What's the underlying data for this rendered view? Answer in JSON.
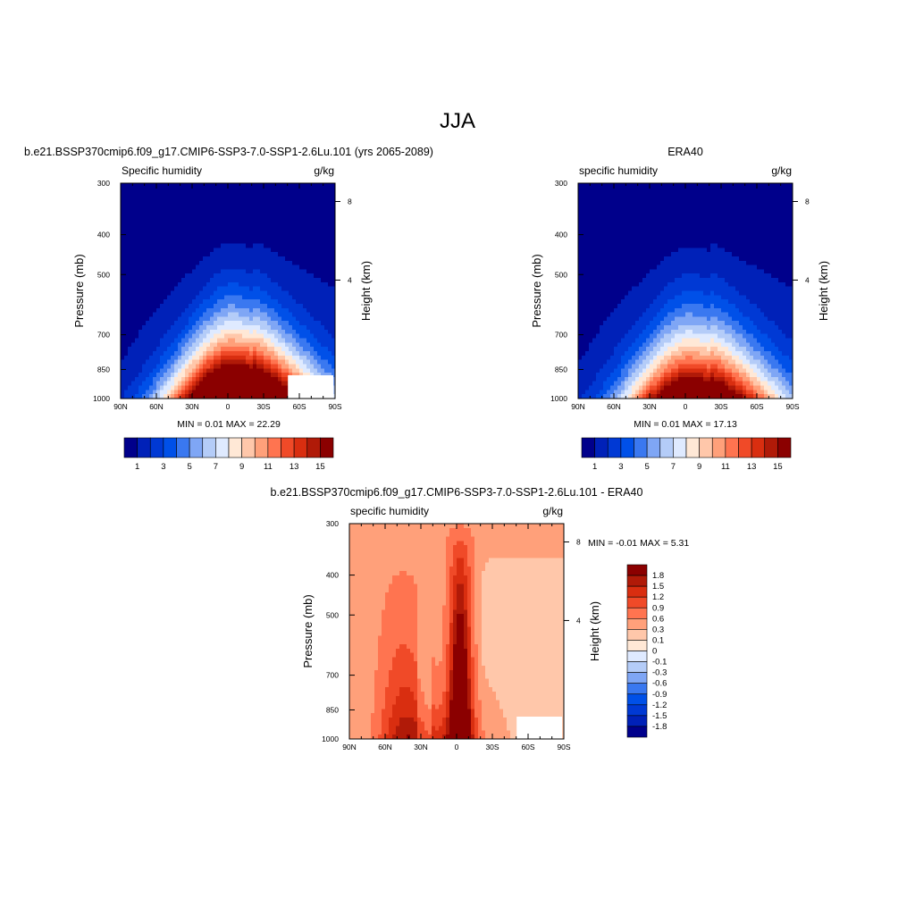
{
  "figure": {
    "title": "JJA"
  },
  "chart_data": [
    {
      "type": "heatmap",
      "title": "b.e21.BSSP370cmip6.f09_g17.CMIP6-SSP3-7.0-SSP1-2.6Lu.101 (yrs 2065-2089)",
      "left_label": "Specific humidity",
      "units": "g/kg",
      "ylabel": "Pressure (mb)",
      "y2label": "Height (km)",
      "x_ticks": [
        "90N",
        "60N",
        "30N",
        "0",
        "30S",
        "60S",
        "90S"
      ],
      "y_ticks": [
        "300",
        "400",
        "500",
        "700",
        "850",
        "1000"
      ],
      "y2_ticks": [
        "8",
        "4"
      ],
      "stats": "MIN =   0.01  MAX =  22.29",
      "colorbar_labels": [
        "1",
        "3",
        "5",
        "7",
        "9",
        "11",
        "13",
        "15"
      ],
      "colorbar_colors": [
        "#00008b",
        "#0021b8",
        "#0039d4",
        "#0050e8",
        "#3a78f0",
        "#7fa6f5",
        "#b4ccf8",
        "#dfeaff",
        "#ffe8d6",
        "#ffc7aa",
        "#ffa07a",
        "#ff7450",
        "#f04a28",
        "#d92e10",
        "#b01a08",
        "#8b0000"
      ],
      "peak_value": 22.29,
      "peak_location": "0 / 1000 mb"
    },
    {
      "type": "heatmap",
      "title": "ERA40",
      "left_label": "specific humidity",
      "units": "g/kg",
      "ylabel": "Pressure (mb)",
      "y2label": "Height (km)",
      "x_ticks": [
        "90N",
        "60N",
        "30N",
        "0",
        "30S",
        "60S",
        "90S"
      ],
      "y_ticks": [
        "300",
        "400",
        "500",
        "700",
        "850",
        "1000"
      ],
      "y2_ticks": [
        "8",
        "4"
      ],
      "stats": "MIN =   0.01  MAX =  17.13",
      "colorbar_labels": [
        "1",
        "3",
        "5",
        "7",
        "9",
        "11",
        "13",
        "15"
      ],
      "colorbar_colors": [
        "#00008b",
        "#0021b8",
        "#0039d4",
        "#0050e8",
        "#3a78f0",
        "#7fa6f5",
        "#b4ccf8",
        "#dfeaff",
        "#ffe8d6",
        "#ffc7aa",
        "#ffa07a",
        "#ff7450",
        "#f04a28",
        "#d92e10",
        "#b01a08",
        "#8b0000"
      ],
      "peak_value": 17.13,
      "peak_location": "0 / 1000 mb"
    },
    {
      "type": "heatmap",
      "title": "b.e21.BSSP370cmip6.f09_g17.CMIP6-SSP3-7.0-SSP1-2.6Lu.101 - ERA40",
      "left_label": "specific humidity",
      "units": "g/kg",
      "ylabel": "Pressure (mb)",
      "y2label": "Height (km)",
      "x_ticks": [
        "90N",
        "60N",
        "30N",
        "0",
        "30S",
        "60S",
        "90S"
      ],
      "y_ticks": [
        "300",
        "400",
        "500",
        "700",
        "850",
        "1000"
      ],
      "y2_ticks": [
        "8",
        "4"
      ],
      "stats": "MIN =  -0.01  MAX =   5.31",
      "colorbar_labels": [
        "1.8",
        "1.5",
        "1.2",
        "0.9",
        "0.6",
        "0.3",
        "0.1",
        "0",
        "-0.1",
        "-0.3",
        "-0.6",
        "-0.9",
        "-1.2",
        "-1.5",
        "-1.8"
      ],
      "colorbar_colors": [
        "#8b0000",
        "#b01a08",
        "#d92e10",
        "#f04a28",
        "#ff7450",
        "#ffa07a",
        "#ffc7aa",
        "#ffe8d6",
        "#dfeaff",
        "#b4ccf8",
        "#7fa6f5",
        "#3a78f0",
        "#0050e8",
        "#0039d4",
        "#0021b8",
        "#00008b"
      ]
    }
  ]
}
